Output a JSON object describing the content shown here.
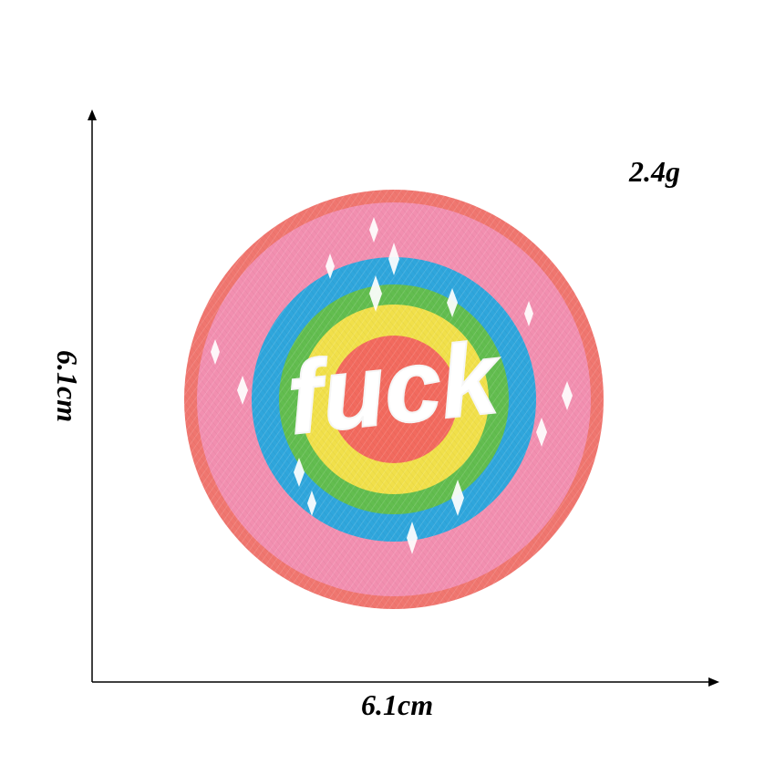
{
  "product": {
    "weight_text": "2.4g",
    "width_text": "6.1cm",
    "height_text": "6.1cm",
    "patch_text": "fuck"
  },
  "colors": {
    "outer_ring": "#f0766f",
    "pink_band": "#f28fb0",
    "blue_band": "#2fa6dc",
    "green_band": "#62bd4f",
    "yellow_band": "#f1e04a",
    "center": "#f26a5e",
    "thread_white": "#ffffff",
    "axis": "#000000"
  },
  "icons": {
    "sparkle": "sparkle-icon",
    "arrow_up": "arrow-up-icon",
    "arrow_right": "arrow-right-icon"
  }
}
